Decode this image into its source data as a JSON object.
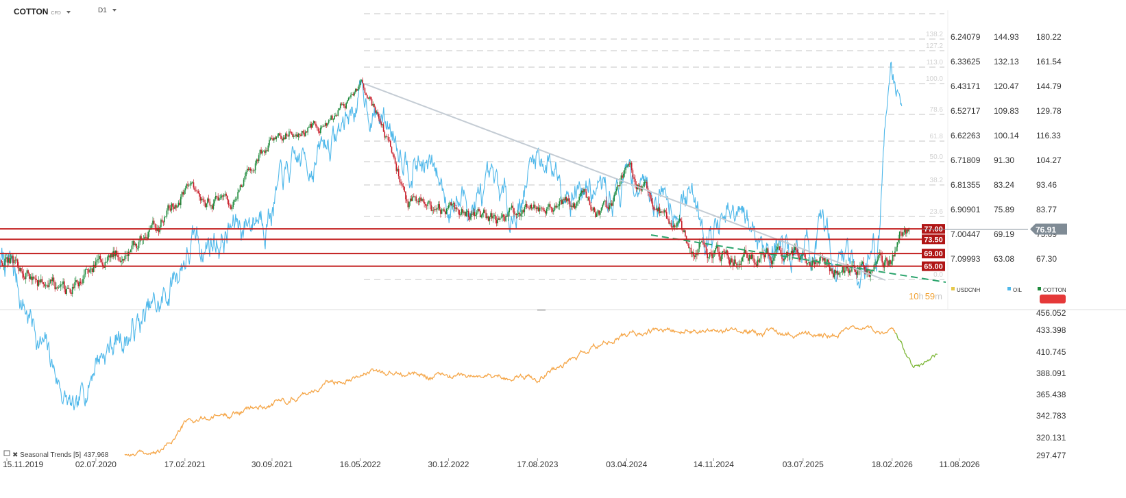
{
  "header": {
    "symbol": "COTTON",
    "symbol_suffix": "CFD",
    "timeframe": "D1"
  },
  "timer": {
    "hours": "10",
    "h_unit": "h",
    "minutes": "59",
    "m_unit": "m"
  },
  "colors": {
    "background": "#ffffff",
    "oil": "#4fb8ea",
    "cotton_up": "#1e8a3c",
    "cotton_down": "#c81e2a",
    "support_line": "#c21d1d",
    "trendline_gray": "#c4ccd4",
    "trendline_green": "#2aa46c",
    "seasonal": "#f5a648",
    "seasonal_forecast": "#7fb83a",
    "gridline": "#d9d9d9",
    "price_badge": "#7f8b95",
    "usdcnh": "#e6c84a"
  },
  "chart_data": [
    {
      "type": "line",
      "panel": "main",
      "title": "COTTON",
      "series": [
        {
          "name": "OIL",
          "role": "overlay",
          "x": [
            "15.11.2019",
            "05.2020",
            "02.07.2020",
            "12.2020",
            "17.02.2021",
            "07.2021",
            "30.09.2021",
            "03.2022",
            "16.05.2022",
            "11.2022",
            "30.12.2022",
            "06.2023",
            "17.08.2023",
            "02.2024",
            "03.04.2024",
            "09.2024",
            "14.11.2024",
            "04.2025",
            "03.07.2025",
            "12.2025",
            "01.2026",
            "02.2026",
            "03.2026"
          ],
          "values": [
            62,
            22,
            40,
            50,
            65,
            72,
            80,
            100,
            116,
            88,
            80,
            76,
            94,
            79,
            86,
            80,
            72,
            68,
            66,
            62,
            68,
            138,
            110
          ]
        },
        {
          "name": "COTTON",
          "role": "candles",
          "x": [
            "15.11.2019",
            "04.2020",
            "02.07.2020",
            "12.2020",
            "17.02.2021",
            "06.2021",
            "30.09.2021",
            "03.2022",
            "16.05.2022",
            "09.2022",
            "30.12.2022",
            "06.2023",
            "17.08.2023",
            "02.2024",
            "03.04.2024",
            "09.2024",
            "14.11.2024",
            "04.2025",
            "03.07.2025",
            "11.2025",
            "18.02.2026",
            "03.2026"
          ],
          "values": [
            67,
            55,
            65,
            78,
            92,
            85,
            115,
            125,
            148,
            87,
            83,
            80,
            88,
            84,
            98,
            72,
            70,
            67,
            67,
            64,
            66,
            74
          ]
        },
        {
          "name": "USDCNH",
          "role": "overlay",
          "x": [],
          "values": []
        }
      ],
      "horizontal_levels": [
        77.0,
        73.5,
        69.0,
        65.0
      ],
      "fibonacci_levels": [
        "138.2",
        "127.2",
        "113.0",
        "100.0",
        "78.6",
        "61.8",
        "50.0",
        "38.2",
        "23.6",
        "0.0"
      ],
      "axis_usdcnh": [
        "6.24079",
        "6.33625",
        "6.43171",
        "6.52717",
        "6.62263",
        "6.71809",
        "6.81355",
        "6.90901",
        "7.00447",
        "7.09993"
      ],
      "axis_oil": [
        "144.93",
        "132.13",
        "120.47",
        "109.83",
        "100.14",
        "91.30",
        "83.24",
        "75.89",
        "69.19",
        "63.08"
      ],
      "axis_cotton": [
        "180.22",
        "161.54",
        "144.79",
        "129.78",
        "116.33",
        "104.27",
        "93.46",
        "83.77",
        "75.09",
        "67.30"
      ],
      "last_price": "76.91",
      "legend": [
        "USDCNH",
        "OIL",
        "COTTON"
      ],
      "legend_position": "bottom-right"
    },
    {
      "type": "line",
      "panel": "seasonal",
      "title": "Seasonal Trends [5]",
      "last_value": "437.968",
      "series": [
        {
          "name": "Seasonal Trends [5]",
          "x": [
            "12.2020",
            "17.02.2021",
            "30.09.2021",
            "16.05.2022",
            "30.12.2022",
            "17.08.2023",
            "03.04.2024",
            "14.11.2024",
            "03.07.2025",
            "18.02.2026",
            "04.2026",
            "06.2026"
          ],
          "values": [
            300,
            335,
            355,
            390,
            385,
            385,
            430,
            435,
            430,
            433,
            390,
            412
          ]
        }
      ],
      "y_ticks": [
        "456.052",
        "433.398",
        "410.745",
        "388.091",
        "365.438",
        "342.783",
        "320.131",
        "297.477"
      ],
      "x_ticks": [
        "15.11.2019",
        "02.07.2020",
        "17.02.2021",
        "30.09.2021",
        "16.05.2022",
        "30.12.2022",
        "17.08.2023",
        "03.04.2024",
        "14.11.2024",
        "03.07.2025",
        "18.02.2026",
        "11.08.2026"
      ]
    }
  ]
}
